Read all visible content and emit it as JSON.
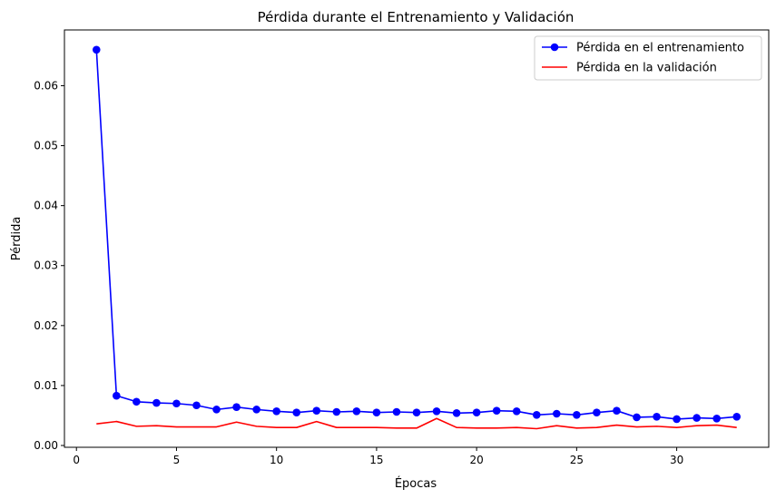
{
  "chart_data": {
    "type": "line",
    "title": "Pérdida durante el Entrenamiento y Validación",
    "xlabel": "Épocas",
    "ylabel": "Pérdida",
    "xlim": [
      -0.6,
      34.6
    ],
    "ylim": [
      -0.0003,
      0.0693
    ],
    "xticks": [
      0,
      5,
      10,
      15,
      20,
      25,
      30
    ],
    "yticks": [
      0.0,
      0.01,
      0.02,
      0.03,
      0.04,
      0.05,
      0.06
    ],
    "ytick_labels": [
      "0.00",
      "0.01",
      "0.02",
      "0.03",
      "0.04",
      "0.05",
      "0.06"
    ],
    "grid": false,
    "legend_position": "top-right",
    "x": [
      1,
      2,
      3,
      4,
      5,
      6,
      7,
      8,
      9,
      10,
      11,
      12,
      13,
      14,
      15,
      16,
      17,
      18,
      19,
      20,
      21,
      22,
      23,
      24,
      25,
      26,
      27,
      28,
      29,
      30,
      31,
      32,
      33
    ],
    "series": [
      {
        "name": "Pérdida en el entrenamiento",
        "color": "#0000ff",
        "marker": "circle",
        "values": [
          0.066,
          0.0083,
          0.0073,
          0.0071,
          0.007,
          0.0067,
          0.006,
          0.0064,
          0.006,
          0.0057,
          0.0055,
          0.0058,
          0.0056,
          0.0057,
          0.0055,
          0.0056,
          0.0055,
          0.0057,
          0.0054,
          0.0055,
          0.0058,
          0.0057,
          0.0051,
          0.0053,
          0.0051,
          0.0055,
          0.0058,
          0.0047,
          0.0048,
          0.0044,
          0.0046,
          0.0045,
          0.0048
        ]
      },
      {
        "name": "Pérdida en la validación",
        "color": "#ff0000",
        "marker": "none",
        "values": [
          0.0036,
          0.004,
          0.0032,
          0.0033,
          0.0031,
          0.0031,
          0.0031,
          0.0039,
          0.0032,
          0.003,
          0.003,
          0.004,
          0.003,
          0.003,
          0.003,
          0.0029,
          0.0029,
          0.0045,
          0.003,
          0.0029,
          0.0029,
          0.003,
          0.0028,
          0.0033,
          0.0029,
          0.003,
          0.0034,
          0.0031,
          0.0032,
          0.003,
          0.0033,
          0.0034,
          0.003
        ]
      }
    ]
  }
}
